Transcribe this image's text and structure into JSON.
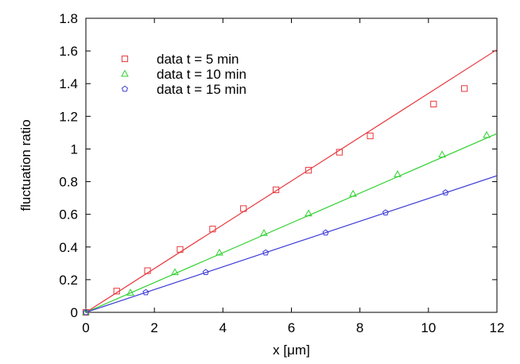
{
  "chart_data": {
    "type": "scatter",
    "title": "",
    "xlabel": "x [μm]",
    "ylabel": "fluctuation ratio",
    "xlim": [
      0,
      12
    ],
    "ylim": [
      0,
      1.8
    ],
    "x_ticks": [
      0,
      2,
      4,
      6,
      8,
      10,
      12
    ],
    "y_ticks": [
      0,
      0.2,
      0.4,
      0.6,
      0.8,
      1,
      1.2,
      1.4,
      1.6,
      1.8
    ],
    "x_tick_labels": [
      "0",
      "2",
      "4",
      "6",
      "8",
      "10",
      "12"
    ],
    "y_tick_labels": [
      "0",
      "0.2",
      "0.4",
      "0.6",
      "0.8",
      "1",
      "1.2",
      "1.4",
      "1.6",
      "1.8"
    ],
    "grid": false,
    "legend_position": "top-left",
    "series": [
      {
        "name": "data t = 5 min",
        "color": "#e8383d",
        "marker": "square",
        "x": [
          0,
          0.9,
          1.8,
          2.75,
          3.7,
          4.6,
          5.55,
          6.5,
          7.4,
          8.3,
          10.15,
          11.05
        ],
        "y": [
          0,
          0.13,
          0.255,
          0.385,
          0.51,
          0.635,
          0.75,
          0.87,
          0.98,
          1.08,
          1.275,
          1.37
        ],
        "fit_slope": 0.134
      },
      {
        "name": "data t = 10 min",
        "color": "#32d132",
        "marker": "triangle",
        "x": [
          0,
          1.3,
          2.6,
          3.9,
          5.2,
          6.5,
          7.8,
          9.1,
          10.4,
          11.7
        ],
        "y": [
          0,
          0.12,
          0.245,
          0.365,
          0.485,
          0.605,
          0.725,
          0.845,
          0.965,
          1.085
        ],
        "fit_slope": 0.0912
      },
      {
        "name": "data t = 15 min",
        "color": "#3b3bd6",
        "marker": "pentagon",
        "x": [
          0,
          1.75,
          3.5,
          5.25,
          7.0,
          8.75,
          10.5
        ],
        "y": [
          0,
          0.122,
          0.245,
          0.365,
          0.487,
          0.61,
          0.733
        ],
        "fit_slope": 0.0697
      }
    ]
  }
}
